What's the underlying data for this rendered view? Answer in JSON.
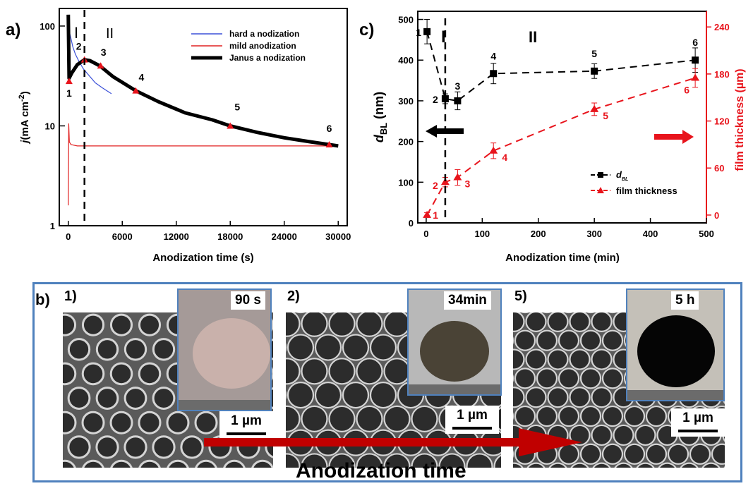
{
  "panel_a": {
    "label": "a)",
    "ylabel_j": "j",
    "ylabel_unit": "(mA cm",
    "ylabel_exp": "-2",
    "ylabel_close": ")",
    "xlabel": "Anodization time (s)",
    "region_I": "I",
    "region_II": "II",
    "legend": [
      "hard a nodization",
      "mild anodization",
      "Janus a nodization"
    ]
  },
  "panel_c": {
    "label": "c)",
    "ylabel_left_main": "d",
    "ylabel_left_sub": "BL",
    "ylabel_left_unit": " (nm)",
    "ylabel_right": "film thickness (µm)",
    "xlabel": "Anodization time (min)",
    "region_I": "I",
    "region_II": "II",
    "legend": [
      "d",
      "film thickness"
    ],
    "legend_sub": "BL"
  },
  "panel_b": {
    "label": "b)",
    "items": [
      {
        "index": "1)",
        "time": "90 s",
        "scale": "1 µm"
      },
      {
        "index": "2)",
        "time": "34min",
        "scale": "1 µm"
      },
      {
        "index": "5)",
        "time": "5 h",
        "scale": "1 µm"
      }
    ],
    "arrow_label": "Anodization time"
  },
  "colors": {
    "hard": "#3b50d8",
    "mild": "#e02020",
    "janus": "#000000",
    "red": "#e8141c",
    "frame": "#4f81bd"
  },
  "chart_data": [
    {
      "type": "line",
      "title": "",
      "xlabel": "Anodization time (s)",
      "ylabel": "j (mA cm-2)",
      "yscale": "log",
      "xlim": [
        -1000,
        31000
      ],
      "ylim": [
        1,
        150
      ],
      "xticks": [
        0,
        6000,
        12000,
        18000,
        24000,
        30000
      ],
      "yticks": [
        1,
        10,
        100
      ],
      "series": [
        {
          "name": "hard a nodization",
          "color": "#3b50d8",
          "x": [
            0,
            150,
            300,
            500,
            800,
            1200,
            1700,
            2300,
            3000,
            3800,
            4800
          ],
          "y": [
            60,
            85,
            75,
            62,
            52,
            44,
            37,
            32,
            27,
            24,
            21
          ]
        },
        {
          "name": "mild anodization",
          "color": "#e02020",
          "x": [
            0,
            50,
            120,
            300,
            1000,
            5000,
            10000,
            20000,
            30000
          ],
          "y": [
            1.6,
            10.5,
            6.9,
            6.5,
            6.3,
            6.3,
            6.3,
            6.3,
            6.3
          ]
        },
        {
          "name": "Janus a nodization",
          "color": "#000000",
          "x": [
            0,
            90,
            400,
            1000,
            1800,
            2400,
            3500,
            5000,
            7500,
            10000,
            13000,
            16000,
            18000,
            21000,
            24000,
            27000,
            29000,
            30000
          ],
          "y": [
            130,
            30,
            34,
            41,
            46,
            45,
            40,
            31,
            22.5,
            17.5,
            13.5,
            11.5,
            10,
            8.6,
            7.6,
            6.9,
            6.5,
            6.3
          ]
        }
      ],
      "markers": [
        {
          "label": "1",
          "x": 90,
          "y": 28
        },
        {
          "label": "2",
          "x": 1800,
          "y": 46
        },
        {
          "label": "3",
          "x": 3600,
          "y": 40
        },
        {
          "label": "4",
          "x": 7500,
          "y": 22.5
        },
        {
          "label": "5",
          "x": 18000,
          "y": 10
        },
        {
          "label": "6",
          "x": 29000,
          "y": 6.5
        }
      ],
      "vline_x": 1800
    },
    {
      "type": "line",
      "title": "",
      "xlabel": "Anodization time (min)",
      "ylabel_left": "dBL (nm)",
      "ylabel_right": "film thickness (µm)",
      "xlim": [
        -15,
        500
      ],
      "xticks": [
        0,
        100,
        200,
        300,
        400,
        500
      ],
      "ylim_left": [
        0,
        520
      ],
      "yticks_left": [
        0,
        100,
        200,
        300,
        400,
        500
      ],
      "ylim_right": [
        -10,
        260
      ],
      "yticks_right": [
        0,
        60,
        120,
        180,
        240
      ],
      "vline_x": 34,
      "series": [
        {
          "name": "dBL",
          "axis": "left",
          "color": "#000000",
          "x": [
            1.5,
            34,
            56,
            120,
            300,
            480
          ],
          "y": [
            470,
            305,
            300,
            367,
            373,
            400
          ],
          "err": [
            30,
            12,
            22,
            25,
            18,
            30
          ],
          "labels": [
            "1",
            "2",
            "3",
            "4",
            "5",
            "6"
          ]
        },
        {
          "name": "film thickness",
          "axis": "right",
          "color": "#e8141c",
          "x": [
            1.5,
            34,
            56,
            120,
            300,
            480
          ],
          "y": [
            0,
            42,
            48,
            82,
            135,
            175
          ],
          "err": [
            3,
            6,
            10,
            10,
            8,
            12
          ],
          "labels": [
            "1",
            "2",
            "3",
            "4",
            "5",
            "6"
          ]
        }
      ]
    }
  ]
}
